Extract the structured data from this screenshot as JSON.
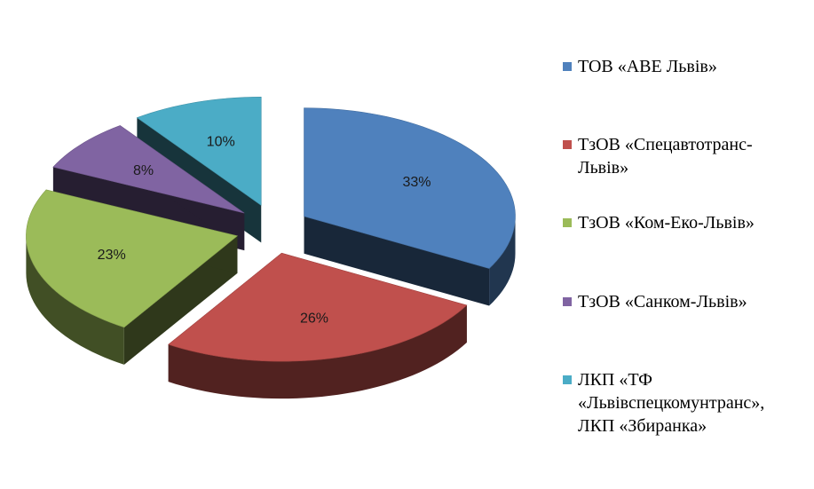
{
  "chart_data": {
    "type": "pie",
    "title": "",
    "three_d": true,
    "exploded": true,
    "legend_position": "right",
    "slices": [
      {
        "label": "ТОВ «АВЕ  Львів»",
        "value": 33,
        "value_label": "33%",
        "color": "#4F81BD"
      },
      {
        "label": "ТзОВ «Спецавтотранс-\nЛьвів»",
        "value": 26,
        "value_label": "26%",
        "color": "#C0504D"
      },
      {
        "label": "ТзОВ «Ком-Еко-Львів»",
        "value": 23,
        "value_label": "23%",
        "color": "#9BBB59"
      },
      {
        "label": "ТзОВ «Санком-Львів»",
        "value": 8,
        "value_label": "8%",
        "color": "#8064A2"
      },
      {
        "label": "ЛКП «ТФ\n«Львівспецкомунтранс»,\nЛКП «Збиранка»",
        "value": 10,
        "value_label": "10%",
        "color": "#4BACC6"
      }
    ]
  }
}
